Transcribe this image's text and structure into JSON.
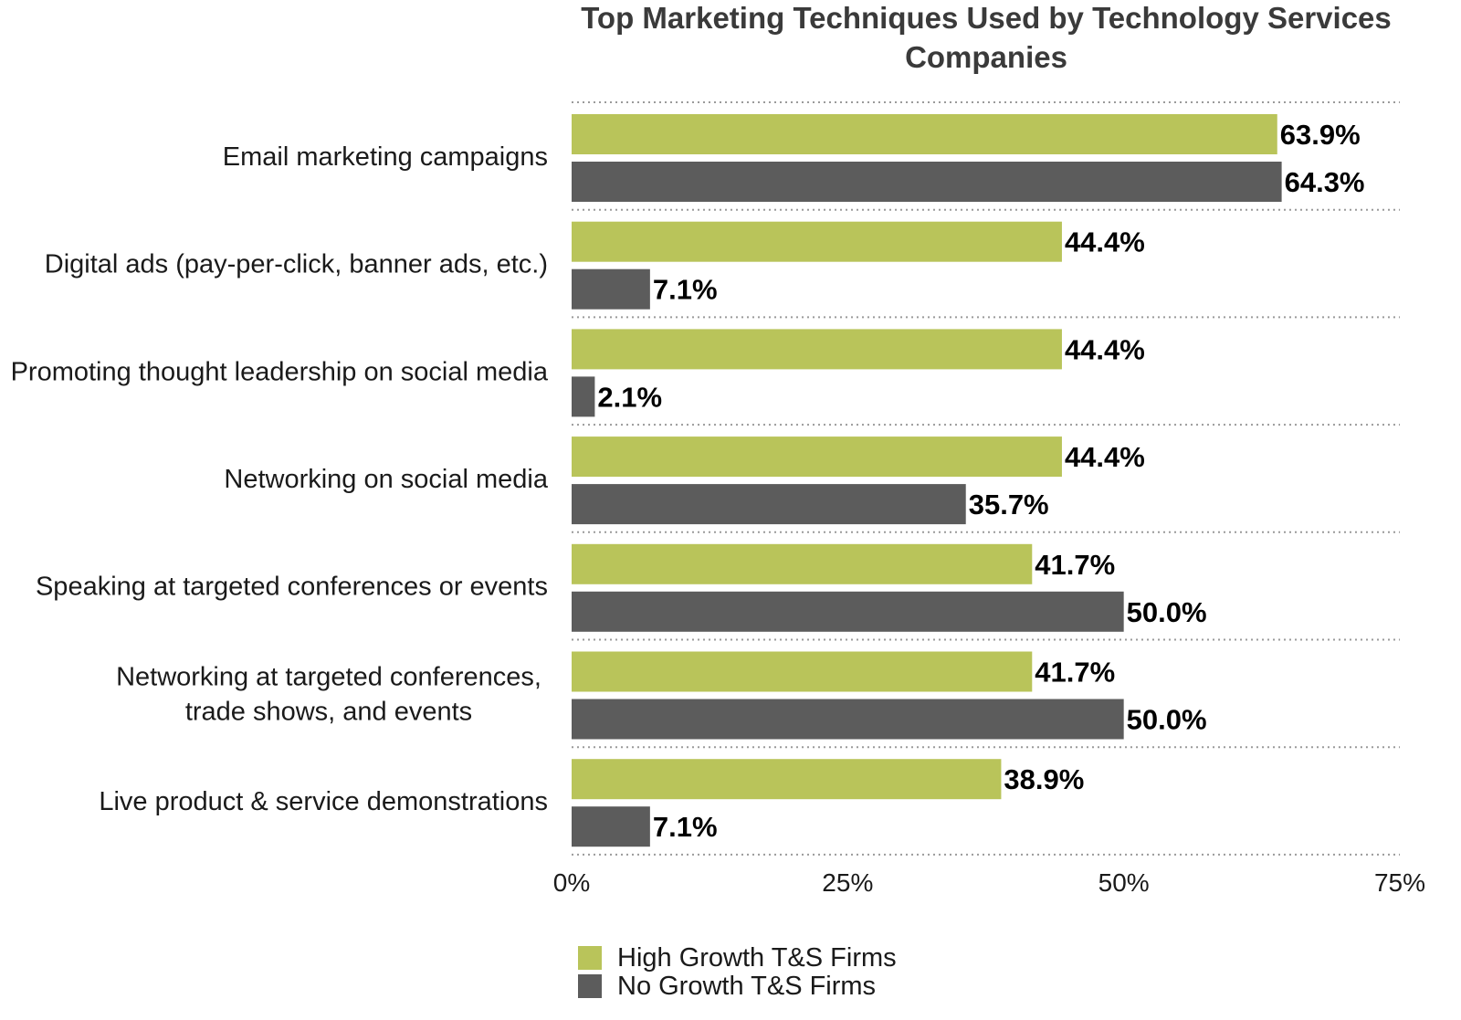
{
  "chart_data": {
    "type": "bar",
    "orientation": "horizontal",
    "title": "Top Marketing Techniques Used by Technology Services Companies",
    "title_lines": [
      "Top Marketing Techniques Used by Technology Services",
      "Companies"
    ],
    "categories": [
      "Email marketing campaigns",
      "Digital ads (pay-per-click, banner ads, etc.)",
      "Promoting thought leadership on social media",
      "Networking on social media",
      "Speaking at targeted conferences or events",
      "Networking at targeted conferences, trade shows, and events",
      "Live product & service demonstrations"
    ],
    "category_lines": [
      [
        "Email marketing campaigns"
      ],
      [
        "Digital ads (pay-per-click, banner ads, etc.)"
      ],
      [
        "Promoting thought leadership on social media"
      ],
      [
        "Networking on social media"
      ],
      [
        "Speaking at targeted conferences or events"
      ],
      [
        "Networking at targeted conferences,",
        "trade shows, and events"
      ],
      [
        "Live product & service demonstrations"
      ]
    ],
    "series": [
      {
        "name": "High Growth T&S Firms",
        "color": "#b9c45a",
        "values": [
          63.9,
          44.4,
          44.4,
          44.4,
          41.7,
          41.7,
          38.9
        ],
        "labels": [
          "63.9%",
          "44.4%",
          "44.4%",
          "44.4%",
          "41.7%",
          "41.7%",
          "38.9%"
        ]
      },
      {
        "name": "No Growth T&S Firms",
        "color": "#5c5c5c",
        "values": [
          64.3,
          7.1,
          2.1,
          35.7,
          50.0,
          50.0,
          7.1
        ],
        "labels": [
          "64.3%",
          "7.1%",
          "2.1%",
          "35.7%",
          "50.0%",
          "50.0%",
          "7.1%"
        ]
      }
    ],
    "xlim": [
      0,
      75
    ],
    "xticks": [
      0,
      25,
      50,
      75
    ],
    "xtick_labels": [
      "0%",
      "25%",
      "50%",
      "75%"
    ],
    "grid": "dotted horizontal separators between categories",
    "legend_position": "bottom-center"
  }
}
